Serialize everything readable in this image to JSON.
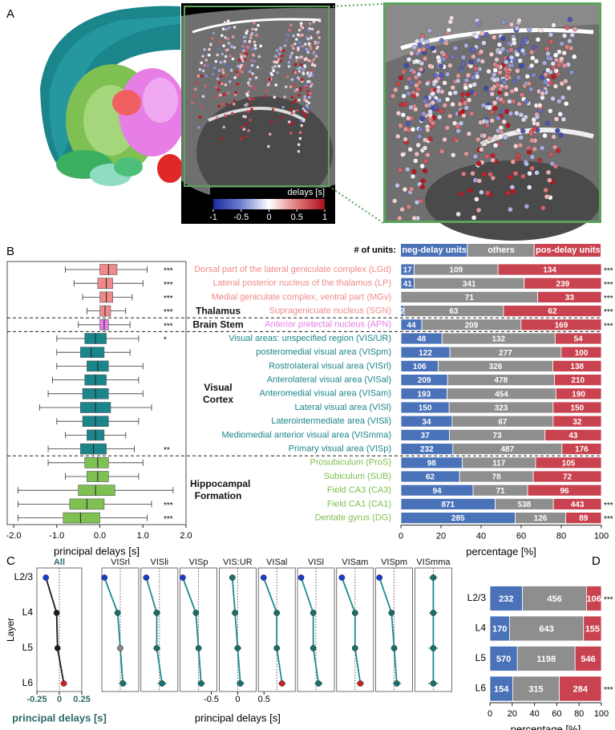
{
  "panel_labels": [
    "A",
    "B",
    "C",
    "D"
  ],
  "chart_data": [
    {
      "type": "colorbar",
      "label": "delays [s]",
      "xlim": [
        -1,
        1
      ],
      "xticks": [
        -1,
        -0.5,
        0,
        0.5,
        1
      ],
      "colors": [
        "#1c2a9e",
        "#6f7fd0",
        "#ffffff",
        "#e07a7a",
        "#a8101c"
      ]
    },
    {
      "type": "boxplot",
      "xlabel": "principal delays [s]",
      "xlim": [
        -2.15,
        2.0
      ],
      "xticks": [
        {
          "value": -2,
          "label": "-2.0"
        },
        {
          "value": -1,
          "label": "-1.0"
        },
        {
          "value": 0,
          "label": "0.0"
        },
        {
          "value": 1,
          "label": "1.0"
        },
        {
          "value": 2,
          "label": "2.0"
        }
      ],
      "groups": [
        {
          "name": "Thalamus",
          "color": "#f08a8a",
          "categories": [
            "Dorsal part of the lateral geniculate complex (LGd)",
            "Lateral posterior nucleus of the thalamus (LP)",
            "Medial geniculate complex, ventral part (MGv)",
            "Supragenicuate nucleus (SGN)"
          ],
          "whislo": [
            -0.8,
            -0.6,
            -0.4,
            -0.3
          ],
          "q1": [
            0,
            -0.05,
            0,
            0
          ],
          "med": [
            0.2,
            0.15,
            0.15,
            0.12
          ],
          "q3": [
            0.4,
            0.3,
            0.3,
            0.25
          ],
          "whishi": [
            1.1,
            1.0,
            0.75,
            0.6
          ],
          "significance": [
            "***",
            "***",
            "***",
            "***"
          ]
        },
        {
          "name": "Brain Stem",
          "color": "#e67ee6",
          "categories": [
            "Anterior pretectal nucleus (APN)"
          ],
          "whislo": [
            -0.5
          ],
          "q1": [
            0
          ],
          "med": [
            0.1
          ],
          "q3": [
            0.2
          ],
          "whishi": [
            0.7
          ],
          "significance": [
            "***"
          ]
        },
        {
          "name": "Visual Cortex",
          "color": "#1b858c",
          "categories": [
            "Visual areas: unspecified region (VIS/UR)",
            "posteromedial visual area (VISpm)",
            "Rostrolateral visual area (VISrl)",
            "Anterolateral visual area (VISal)",
            "Anteromedial visual area (VISam)",
            "Lateral visual area (VISl)",
            "Laterointermediate area (VISli)",
            "Mediomedial anterior visual area (VISmma)",
            "Primary visual area (VISp)"
          ],
          "whislo": [
            -1.0,
            -1.0,
            -1.0,
            -1.1,
            -1.2,
            -1.4,
            -1.0,
            -0.8,
            -1.2
          ],
          "q1": [
            -0.35,
            -0.45,
            -0.3,
            -0.35,
            -0.4,
            -0.45,
            -0.4,
            -0.3,
            -0.45
          ],
          "med": [
            -0.1,
            -0.2,
            -0.05,
            -0.1,
            -0.1,
            -0.1,
            -0.1,
            -0.1,
            -0.15
          ],
          "q3": [
            0.15,
            0.1,
            0.2,
            0.15,
            0.2,
            0.25,
            0.2,
            0.1,
            0.15
          ],
          "whishi": [
            0.9,
            0.7,
            1.0,
            0.9,
            1.0,
            1.2,
            0.9,
            0.6,
            0.8
          ],
          "significance": [
            "*",
            null,
            null,
            null,
            null,
            null,
            null,
            null,
            "**"
          ]
        },
        {
          "name": "Hippocampal Formation",
          "color": "#7ec052",
          "categories": [
            "Prosubiculum (ProS)",
            "Subiculum (SUB)",
            "Field CA3 (CA3)",
            "Field CA1 (CA1)",
            "Dentate gyrus (DG)"
          ],
          "whislo": [
            -1.2,
            -0.8,
            -1.9,
            -1.9,
            -1.9
          ],
          "q1": [
            -0.35,
            -0.3,
            -0.5,
            -0.7,
            -0.85
          ],
          "med": [
            -0.05,
            -0.05,
            -0.1,
            -0.3,
            -0.45
          ],
          "q3": [
            0.2,
            0.2,
            0.35,
            0.1,
            0
          ],
          "whishi": [
            1.0,
            0.9,
            1.7,
            1.2,
            1.1
          ],
          "significance": [
            null,
            null,
            null,
            "***",
            "***"
          ]
        }
      ]
    },
    {
      "type": "bar",
      "orientation": "horizontal",
      "stacking": "percent",
      "legend_title": "# of units:",
      "xlabel": "percentage [%]",
      "xlim": [
        0,
        100
      ],
      "xticks": [
        0,
        20,
        40,
        60,
        80,
        100
      ],
      "series": [
        {
          "name": "neg-delay units",
          "color": "#4a72b8",
          "values": [
            17,
            41,
            0,
            2,
            44,
            48,
            122,
            106,
            209,
            193,
            150,
            34,
            37,
            232,
            98,
            62,
            94,
            871,
            285
          ]
        },
        {
          "name": "others",
          "color": "#8e8e8e",
          "values": [
            109,
            341,
            71,
            63,
            209,
            132,
            277,
            326,
            478,
            454,
            323,
            67,
            73,
            487,
            117,
            78,
            71,
            538,
            126
          ]
        },
        {
          "name": "pos-delay units",
          "color": "#c8434f",
          "values": [
            134,
            239,
            33,
            62,
            169,
            54,
            100,
            138,
            210,
            190,
            150,
            32,
            43,
            176,
            105,
            72,
            96,
            443,
            89
          ]
        }
      ],
      "significance": [
        "***",
        "***",
        "***",
        "***",
        "***",
        null,
        null,
        null,
        null,
        null,
        null,
        null,
        null,
        null,
        null,
        null,
        null,
        "***",
        "***"
      ]
    },
    {
      "type": "line",
      "orientation": "horizontal",
      "ylabel": "Layer",
      "xlabel": "principal delays [s]",
      "categories": [
        "L2/3",
        "L4",
        "L5",
        "L6"
      ],
      "xlim": [
        -0.25,
        0.25
      ],
      "xticks": [
        -0.25,
        0,
        0.25
      ],
      "series": [
        {
          "name": "All",
          "color": "#1a1a1a",
          "values": [
            -0.15,
            -0.03,
            -0.02,
            0.05
          ],
          "errors": [
            0.03,
            0.02,
            0.02,
            0.03
          ],
          "point_colors": [
            "#1a3ccc",
            "#1a1a1a",
            "#1a1a1a",
            "#cc2222"
          ]
        }
      ]
    },
    {
      "type": "line",
      "orientation": "horizontal",
      "xlabel": "principal delays [s]",
      "xlim": [
        -0.35,
        0.35
      ],
      "xticks": [
        -0.5,
        0,
        0.5
      ],
      "series": [
        {
          "name": "VISrl",
          "color": "#1a8c8c",
          "values": [
            -0.3,
            -0.05,
            0.0,
            0.05
          ],
          "errors": [
            0.05,
            0.06,
            0.06,
            0.08
          ],
          "point_colors": [
            "#1a3ccc",
            "#1a6e6e",
            "#888888",
            "#1a6e6e"
          ]
        },
        {
          "name": "VISli",
          "color": "#1a8c8c",
          "values": [
            -0.25,
            -0.05,
            -0.05,
            0.05
          ],
          "errors": [
            0.06,
            0.07,
            0.07,
            0.09
          ],
          "point_colors": [
            "#1a3ccc",
            "#1a6e6e",
            "#1a6e6e",
            "#1a6e6e"
          ]
        },
        {
          "name": "VISp",
          "color": "#1a8c8c",
          "values": [
            -0.3,
            -0.05,
            0.0,
            0.05
          ],
          "errors": [
            0.04,
            0.05,
            0.05,
            0.07
          ],
          "point_colors": [
            "#1a3ccc",
            "#1a6e6e",
            "#1a6e6e",
            "#1a6e6e"
          ]
        },
        {
          "name": "VIS:UR",
          "color": "#1a8c8c",
          "values": [
            -0.1,
            -0.05,
            0.0,
            0.05
          ],
          "errors": [
            0.06,
            0.06,
            0.07,
            0.08
          ],
          "point_colors": [
            "#1a6e6e",
            "#1a6e6e",
            "#1a6e6e",
            "#1a6e6e"
          ]
        },
        {
          "name": "VISal",
          "color": "#1a8c8c",
          "values": [
            -0.25,
            0.0,
            0.0,
            0.1
          ],
          "errors": [
            0.05,
            0.06,
            0.06,
            0.07
          ],
          "point_colors": [
            "#1a3ccc",
            "#1a6e6e",
            "#1a6e6e",
            "#cc2222"
          ]
        },
        {
          "name": "VISl",
          "color": "#1a8c8c",
          "values": [
            -0.28,
            -0.05,
            -0.05,
            0.05
          ],
          "errors": [
            0.05,
            0.06,
            0.06,
            0.08
          ],
          "point_colors": [
            "#1a3ccc",
            "#1a6e6e",
            "#1a6e6e",
            "#1a6e6e"
          ]
        },
        {
          "name": "VISam",
          "color": "#1a8c8c",
          "values": [
            -0.25,
            0.0,
            0.0,
            0.1
          ],
          "errors": [
            0.05,
            0.06,
            0.06,
            0.07
          ],
          "point_colors": [
            "#1a3ccc",
            "#1a6e6e",
            "#1a6e6e",
            "#cc2222"
          ]
        },
        {
          "name": "VISpm",
          "color": "#1a8c8c",
          "values": [
            -0.28,
            -0.05,
            0.0,
            0.05
          ],
          "errors": [
            0.05,
            0.06,
            0.06,
            0.08
          ],
          "point_colors": [
            "#1a3ccc",
            "#1a6e6e",
            "#1a6e6e",
            "#1a6e6e"
          ]
        },
        {
          "name": "VISmma",
          "color": "#1a8c8c",
          "values": [
            0.0,
            0.0,
            0.0,
            0.0
          ],
          "errors": [
            0.08,
            0.08,
            0.09,
            0.1
          ],
          "point_colors": [
            "#1a6e6e",
            "#1a6e6e",
            "#1a6e6e",
            "#1a6e6e"
          ]
        }
      ]
    },
    {
      "type": "bar",
      "orientation": "horizontal",
      "stacking": "percent",
      "xlabel": "percentage [%]",
      "categories": [
        "L2/3",
        "L4",
        "L5",
        "L6"
      ],
      "xlim": [
        0,
        100
      ],
      "xticks": [
        0,
        20,
        40,
        60,
        80,
        100
      ],
      "series": [
        {
          "name": "neg-delay units",
          "color": "#4a72b8",
          "values": [
            232,
            170,
            570,
            154
          ]
        },
        {
          "name": "others",
          "color": "#8e8e8e",
          "values": [
            456,
            643,
            1198,
            315
          ]
        },
        {
          "name": "pos-delay units",
          "color": "#c8434f",
          "values": [
            106,
            155,
            546,
            284
          ]
        }
      ],
      "significance": [
        "***",
        null,
        null,
        "***"
      ]
    }
  ]
}
